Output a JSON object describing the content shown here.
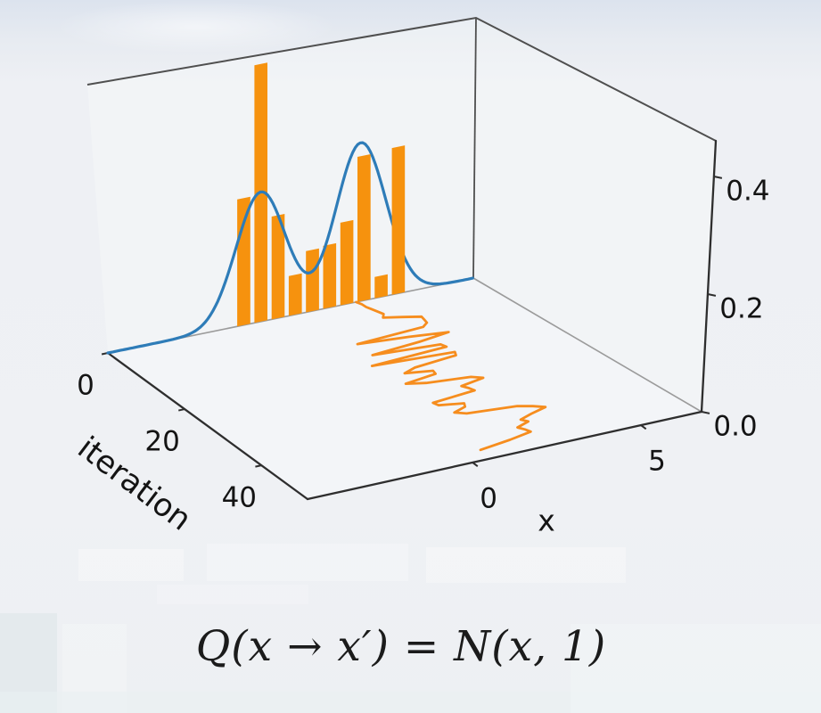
{
  "caption": {
    "formula": "Q(x → x′) = N(x, 1)"
  },
  "chart_data": {
    "type": "3d-mixed (histogram + density line on back wall, sample trace line on floor)",
    "title": "",
    "axes": {
      "x": {
        "label": "x",
        "range": [
          -4.9,
          6.8
        ],
        "ticks": [
          {
            "value": 0,
            "label": "0"
          },
          {
            "value": 5,
            "label": "5"
          }
        ]
      },
      "iteration": {
        "label": "iteration",
        "range": [
          0,
          52
        ],
        "ticks": [
          {
            "value": 0,
            "label": "0"
          },
          {
            "value": 20,
            "label": "20"
          },
          {
            "value": 40,
            "label": "40"
          }
        ]
      },
      "z": {
        "label": "",
        "range": [
          0,
          0.46
        ],
        "ticks": [
          {
            "value": 0,
            "label": "0.0"
          },
          {
            "value": 0.2,
            "label": "0.2"
          },
          {
            "value": 0.4,
            "label": "0.4"
          }
        ]
      }
    },
    "histogram": {
      "plane": "back wall (iteration = 0)",
      "bin_width": 0.55,
      "bar_fill_fraction": 0.76,
      "bin_centers": [
        -0.55,
        0.0,
        0.55,
        1.1,
        1.65,
        2.2,
        2.75,
        3.3,
        3.85,
        4.4
      ],
      "densities": [
        0.22,
        0.446,
        0.178,
        0.069,
        0.106,
        0.109,
        0.143,
        0.251,
        0.037,
        0.254
      ]
    },
    "density_curve": {
      "type": "gaussian-mixture",
      "components": [
        {
          "weight": 0.45,
          "mean": 0.0,
          "std": 0.8
        },
        {
          "weight": 0.55,
          "mean": 3.2,
          "std": 0.8
        }
      ]
    },
    "trace": {
      "description": "MCMC sample x value per iteration, drawn on the floor plane",
      "x_values": [
        3.05,
        3.1,
        3.1,
        3.15,
        3.2,
        3.25,
        3.1,
        3.6,
        4.05,
        4.0,
        3.95,
        3.7,
        1.5,
        3.0,
        4.1,
        3.05,
        1.45,
        3.45,
        3.5,
        1.05,
        3.5,
        3.4,
        2.0,
        1.55,
        2.3,
        2.25,
        1.2,
        1.7,
        2.95,
        3.2,
        2.4,
        2.5,
        2.55,
        1.15,
        1.2,
        1.85,
        1.75,
        1.3,
        1.55,
        2.95,
        3.3,
        3.55,
        3.0,
        2.55,
        2.65,
        2.2,
        2.3,
        2.35,
        1.6,
        0.6
      ]
    },
    "colors": {
      "histogram_bar": "#f6920e",
      "density_curve": "#2e7cb8",
      "trace_line": "#f68d1e",
      "axis_line": "#2e2e2e",
      "frame_edge": "#4f4f4f",
      "pane_edge": "#9b9b9b",
      "tick_text": "#141414"
    }
  }
}
